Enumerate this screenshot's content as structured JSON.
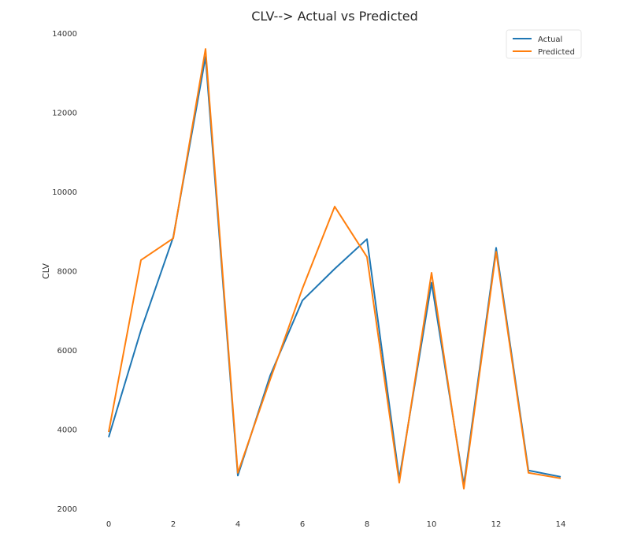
{
  "chart_data": {
    "type": "line",
    "title": "CLV--> Actual vs Predicted",
    "xlabel": "",
    "ylabel": "CLV",
    "xlim": [
      0,
      14
    ],
    "ylim": [
      2000,
      14000
    ],
    "grid": false,
    "x_ticks": [
      0,
      2,
      4,
      6,
      8,
      10,
      12,
      14
    ],
    "y_ticks": [
      2000,
      4000,
      6000,
      8000,
      10000,
      12000,
      14000
    ],
    "legend_position": "top-right",
    "x": [
      0,
      1,
      2,
      3,
      4,
      5,
      6,
      7,
      8,
      9,
      10,
      11,
      12,
      13,
      14
    ],
    "series": [
      {
        "name": "Actual",
        "color": "#1f77b4",
        "values": [
          3800,
          6500,
          8850,
          13400,
          2830,
          5350,
          7250,
          8050,
          8800,
          2750,
          7700,
          2600,
          8580,
          2960,
          2800
        ]
      },
      {
        "name": "Predicted",
        "color": "#ff7f0e",
        "values": [
          3930,
          8270,
          8820,
          13600,
          2900,
          5250,
          7550,
          9620,
          8350,
          2650,
          7950,
          2500,
          8480,
          2900,
          2760
        ]
      }
    ]
  }
}
